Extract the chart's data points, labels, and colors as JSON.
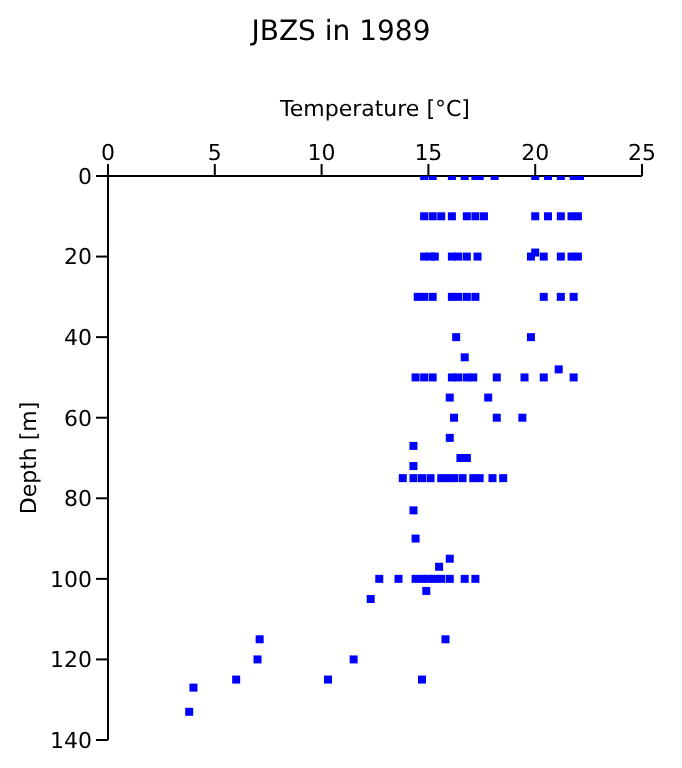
{
  "chart_data": {
    "type": "scatter",
    "title": "JBZS in 1989",
    "xlabel": "Temperature [°C]",
    "ylabel": "Depth [m]",
    "x": [
      14.8,
      15.2,
      16.1,
      16.7,
      17.2,
      17.4,
      18.1,
      20.0,
      20.6,
      21.2,
      21.8,
      22.1,
      14.8,
      15.2,
      15.6,
      16.1,
      16.8,
      17.2,
      17.6,
      20.0,
      20.6,
      21.2,
      21.7,
      22.0,
      14.8,
      15.1,
      15.3,
      16.1,
      16.4,
      16.8,
      17.3,
      19.8,
      20.0,
      20.4,
      21.2,
      21.7,
      22.0,
      14.5,
      14.8,
      15.2,
      16.1,
      16.4,
      16.8,
      17.2,
      20.4,
      21.2,
      21.8,
      16.3,
      19.8,
      16.7,
      21.1,
      14.4,
      14.8,
      15.2,
      16.1,
      16.4,
      16.8,
      17.1,
      18.2,
      19.5,
      20.4,
      21.8,
      16.0,
      17.8,
      16.2,
      18.2,
      19.4,
      16.0,
      14.3,
      16.5,
      16.8,
      14.3,
      13.8,
      14.3,
      14.7,
      15.1,
      15.6,
      15.9,
      16.2,
      16.6,
      17.1,
      17.4,
      18.0,
      18.5,
      14.3,
      14.4,
      16.0,
      15.5,
      12.7,
      13.6,
      14.4,
      14.7,
      15.0,
      15.3,
      15.6,
      16.0,
      16.7,
      17.2,
      14.9,
      12.3,
      7.1,
      15.8,
      7.0,
      11.5,
      6.0,
      10.3,
      14.7,
      4.0,
      3.8
    ],
    "series": [
      {
        "color": "#0000ff",
        "values": [
          0,
          0,
          0,
          0,
          0,
          0,
          0,
          0,
          0,
          0,
          0,
          0,
          10,
          10,
          10,
          10,
          10,
          10,
          10,
          10,
          10,
          10,
          10,
          10,
          20,
          20,
          20,
          20,
          20,
          20,
          20,
          20,
          19,
          20,
          20,
          20,
          20,
          30,
          30,
          30,
          30,
          30,
          30,
          30,
          30,
          30,
          30,
          40,
          40,
          45,
          48,
          50,
          50,
          50,
          50,
          50,
          50,
          50,
          50,
          50,
          50,
          50,
          55,
          55,
          60,
          60,
          60,
          65,
          67,
          70,
          70,
          72,
          75,
          75,
          75,
          75,
          75,
          75,
          75,
          75,
          75,
          75,
          75,
          75,
          83,
          90,
          95,
          97,
          100,
          100,
          100,
          100,
          100,
          100,
          100,
          100,
          100,
          100,
          103,
          105,
          115,
          115,
          120,
          120,
          125,
          125,
          125,
          127,
          133
        ]
      }
    ],
    "xlim": [
      0,
      25
    ],
    "xticks": [
      0,
      5,
      10,
      15,
      20,
      25
    ],
    "ylim": [
      140,
      0
    ],
    "yticks": [
      0,
      20,
      40,
      60,
      80,
      100,
      120,
      140
    ],
    "marker": "square",
    "grid": false,
    "legend": false
  }
}
